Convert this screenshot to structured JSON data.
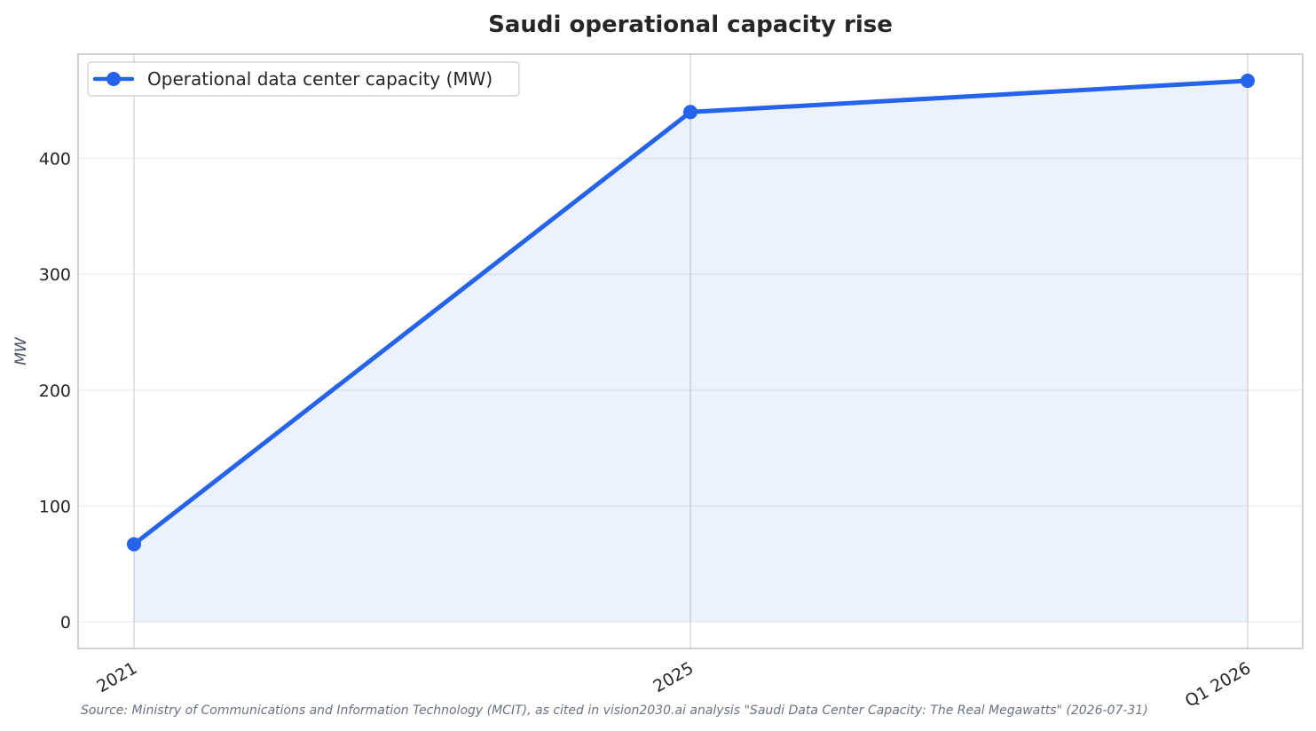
{
  "chart_data": {
    "type": "line",
    "title": "Saudi operational capacity rise",
    "xlabel": "",
    "ylabel": "MW",
    "categories": [
      "2021",
      "2025",
      "Q1 2026"
    ],
    "series": [
      {
        "name": "Operational data center capacity (MW)",
        "values": [
          67,
          440,
          467
        ],
        "color": "#2563eb",
        "fill_color": "#2563eb",
        "marker": "circle"
      }
    ],
    "ylim": [
      -23,
      490
    ],
    "yticks": [
      0,
      100,
      200,
      300,
      400
    ],
    "grid": true,
    "area_fill": true,
    "legend_position": "upper-left",
    "source": "Source: Ministry of Communications and Information Technology (MCIT), as cited in vision2030.ai analysis \"Saudi Data Center Capacity: The Real Megawatts\" (2026-07-31)"
  }
}
